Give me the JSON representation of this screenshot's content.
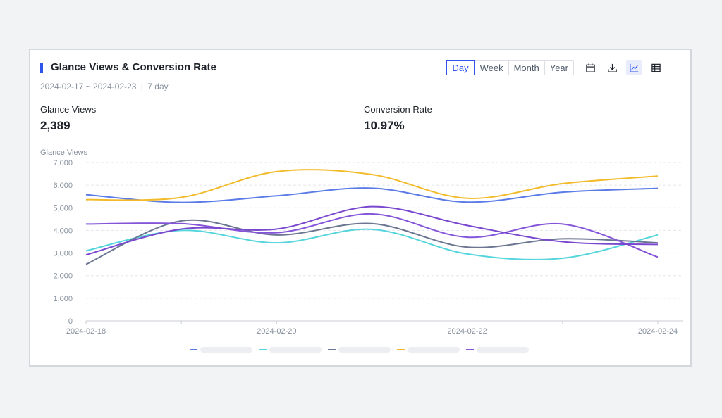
{
  "header": {
    "title": "Glance Views & Conversion Rate",
    "date_range": "2024-02-17 ~ 2024-02-23",
    "period": "7 day",
    "separator": "|"
  },
  "toolbar": {
    "ranges": [
      "Day",
      "Week",
      "Month",
      "Year"
    ],
    "active_range": "Day"
  },
  "metrics": [
    {
      "label": "Glance Views",
      "value": "2,389"
    },
    {
      "label": "Conversion Rate",
      "value": "10.97%"
    }
  ],
  "colors": {
    "accent": "#2f54eb"
  },
  "chart_data": {
    "type": "line",
    "ylabel": "Glance Views",
    "ylim": [
      0,
      7000
    ],
    "yticks": [
      0,
      1000,
      2000,
      3000,
      4000,
      5000,
      6000,
      7000
    ],
    "ytick_labels": [
      "0",
      "1,000",
      "2,000",
      "3,000",
      "4,000",
      "5,000",
      "6,000",
      "7,000"
    ],
    "x": [
      0,
      1,
      2,
      3,
      4,
      5,
      6
    ],
    "x_tick_labels": [
      {
        "at": 0,
        "label": "2024-02-18"
      },
      {
        "at": 2,
        "label": "2024-02-20"
      },
      {
        "at": 4,
        "label": "2024-02-22"
      },
      {
        "at": 6,
        "label": "2024-02-24"
      }
    ],
    "grid": true,
    "legend": "bottom-center",
    "series": [
      {
        "name": "",
        "color": "#5b7be6",
        "values": [
          5580,
          5240,
          5530,
          5870,
          5250,
          5690,
          5860
        ]
      },
      {
        "name": "",
        "color": "#55d5dc",
        "values": [
          3100,
          4000,
          3450,
          4050,
          2960,
          2770,
          3800
        ]
      },
      {
        "name": "",
        "color": "#6b7691",
        "values": [
          2500,
          4420,
          3800,
          4300,
          3260,
          3630,
          3450
        ]
      },
      {
        "name": "",
        "color": "#f2bb2b",
        "values": [
          5360,
          5460,
          6600,
          6470,
          5420,
          6070,
          6400
        ]
      },
      {
        "name": "",
        "color": "#8455d9",
        "values": [
          4280,
          4300,
          3900,
          4730,
          3700,
          4280,
          2820
        ]
      },
      {
        "name": "",
        "color": "#7a48cf",
        "values": [
          2920,
          4060,
          4060,
          5050,
          4220,
          3500,
          3380
        ],
        "legend": false
      }
    ]
  }
}
